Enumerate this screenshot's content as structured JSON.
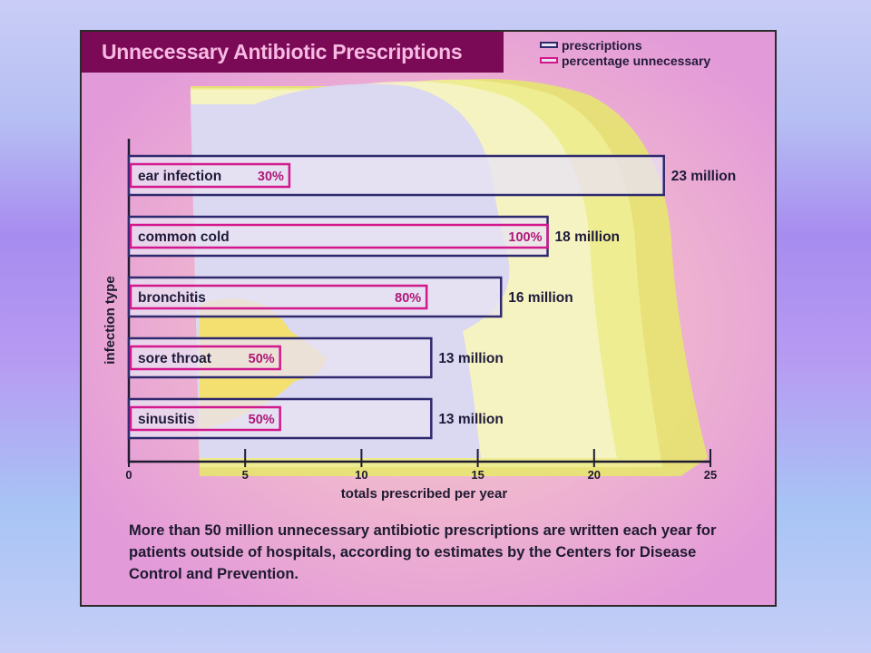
{
  "title": "Unnecessary Antibiotic Prescriptions",
  "legend": [
    {
      "label": "prescriptions",
      "color": "#2f2a6e"
    },
    {
      "label": "percentage unnecessary",
      "color": "#d3178c"
    }
  ],
  "caption": "More than 50 million unnecessary antibiotic prescriptions are written each year for patients outside of hospitals, according to estimates by the Centers for Disease Control and Prevention.",
  "colors": {
    "bar_fill": "#e8e1f2",
    "bar_border": "#2f2a6e",
    "pct_border": "#d3178c",
    "pct_text": "#b01878",
    "label_text": "#1e1a3a",
    "axis": "#1e1a30"
  },
  "chart_data": {
    "type": "bar",
    "orientation": "horizontal",
    "title": "Unnecessary Antibiotic Prescriptions",
    "xlabel": "totals prescribed per year",
    "ylabel": "infection type",
    "xlim": [
      0,
      25
    ],
    "xticks": [
      0,
      5,
      10,
      15,
      20,
      25
    ],
    "categories": [
      "ear infection",
      "common cold",
      "bronchitis",
      "sore throat",
      "sinusitis"
    ],
    "series": [
      {
        "name": "prescriptions",
        "values": [
          23,
          18,
          16,
          13,
          13
        ],
        "labels": [
          "23 million",
          "18 million",
          "16 million",
          "13 million",
          "13 million"
        ]
      },
      {
        "name": "percentage unnecessary",
        "values": [
          30,
          100,
          80,
          50,
          50
        ],
        "labels": [
          "30%",
          "100%",
          "80%",
          "50%",
          "50%"
        ]
      }
    ],
    "legend_position": "top-right",
    "grid": false
  }
}
